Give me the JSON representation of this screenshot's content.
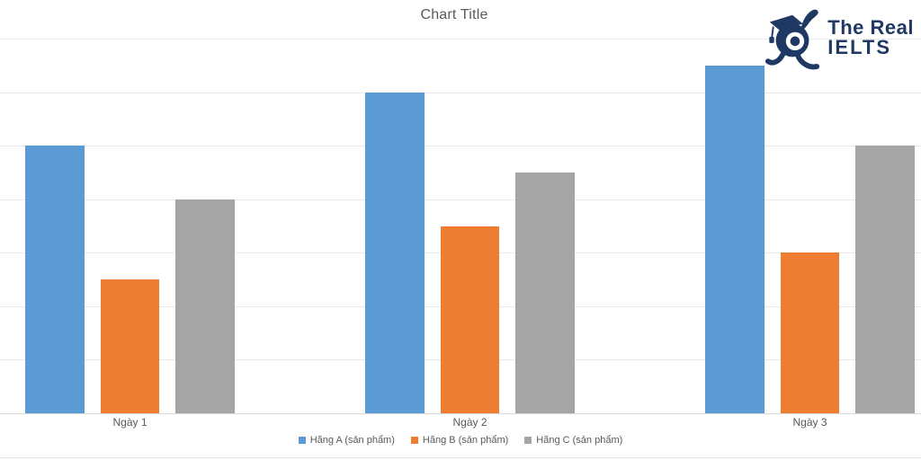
{
  "logo": {
    "text_line1": "The Real",
    "text_line2": "IELTS",
    "mascot_icon": "rabbit-with-graduation-cap-icon",
    "color": "#1F3864"
  },
  "chart_data": {
    "type": "bar",
    "title": "Chart Title",
    "categories": [
      "Ngày 1",
      "Ngày 2",
      "Ngày 3"
    ],
    "series": [
      {
        "name": "Hãng A (sản phẩm)",
        "color": "#5B9BD5",
        "values": [
          5,
          6,
          6.5
        ]
      },
      {
        "name": "Hãng B (sản phẩm)",
        "color": "#ED7D31",
        "values": [
          2.5,
          3.5,
          3
        ]
      },
      {
        "name": "Hãng C (sản phẩm)",
        "color": "#A5A5A5",
        "values": [
          4,
          4.5,
          5
        ]
      }
    ],
    "xlabel": "",
    "ylabel": "",
    "ylim": [
      0,
      7
    ],
    "gridline_step": 1,
    "grid": true,
    "y_axis_tick_labels_visible": false,
    "legend_position": "bottom"
  },
  "colors": {
    "background": "#FFFFFF",
    "title_text": "#595959",
    "axis_text": "#595959",
    "gridline": "#E9E9E9",
    "axis_line": "#D9D9D9",
    "bottom_rule": "#E2E2E2",
    "logo_navy": "#1F3864"
  }
}
